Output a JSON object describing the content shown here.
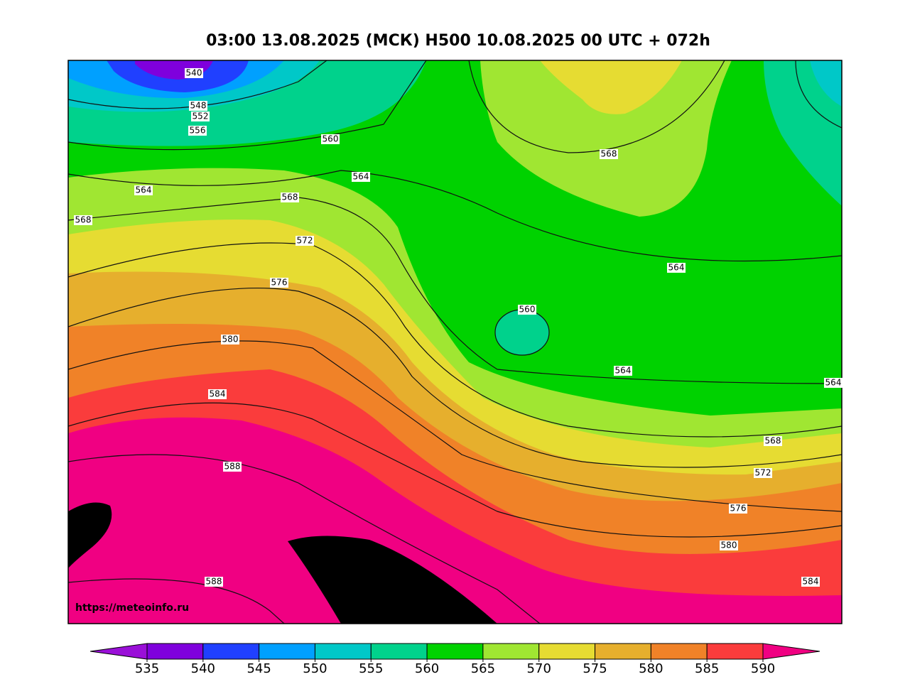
{
  "title": "03:00 13.08.2025 (МСК) H500  10.08.2025 00 UTC + 072h",
  "source": "https://meteoinfo.ru",
  "contour_labels": [
    540,
    548,
    552,
    556,
    560,
    564,
    564,
    568,
    568,
    572,
    576,
    580,
    584,
    588,
    588,
    568,
    564,
    560,
    564,
    564,
    568,
    572,
    576,
    580,
    584
  ],
  "colorbar": {
    "ticks": [
      535,
      540,
      545,
      550,
      555,
      560,
      565,
      570,
      575,
      580,
      585,
      590
    ],
    "colors": [
      "#9a10d8",
      "#7f00dd",
      "#2040ff",
      "#00a0ff",
      "#00c8c8",
      "#00d28c",
      "#00d200",
      "#a0e632",
      "#e6dc32",
      "#e6af2d",
      "#f08228",
      "#fa3c3c",
      "#f00082"
    ]
  }
}
